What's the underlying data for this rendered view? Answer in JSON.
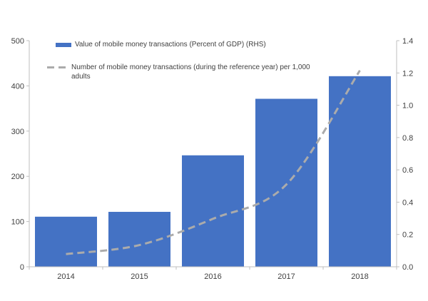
{
  "chart_data": {
    "type": "combo-bar-line",
    "title": "",
    "categories": [
      "2014",
      "2015",
      "2016",
      "2017",
      "2018"
    ],
    "series": [
      {
        "name": "Value of mobile money transactions (Percent of GDP) (RHS)",
        "type": "bar",
        "axis": "right",
        "values": [
          0.31,
          0.34,
          0.69,
          1.04,
          1.18
        ]
      },
      {
        "name": "Number of mobile money transactions (during the reference year) per 1,000 adults",
        "legend_lines": [
          "Number of mobile money transactions (during the reference year) per 1,000",
          "adults"
        ],
        "type": "line",
        "dashed": true,
        "axis": "left",
        "values": [
          28,
          48,
          106,
          182,
          434
        ]
      }
    ],
    "left_axis": {
      "min": 0,
      "max": 500,
      "ticks": [
        "0",
        "100",
        "200",
        "300",
        "400",
        "500"
      ]
    },
    "right_axis": {
      "min": 0,
      "max": 1.4,
      "ticks": [
        "0.0",
        "0.2",
        "0.4",
        "0.6",
        "0.8",
        "1.0",
        "1.2",
        "1.4"
      ]
    },
    "grid": false,
    "legend_position": "top-left",
    "colors": {
      "bar": "#4472C4",
      "line": "#ABABAB",
      "axis": "#BFBFBF",
      "text": "#404040",
      "background": "#FFFFFF"
    }
  }
}
